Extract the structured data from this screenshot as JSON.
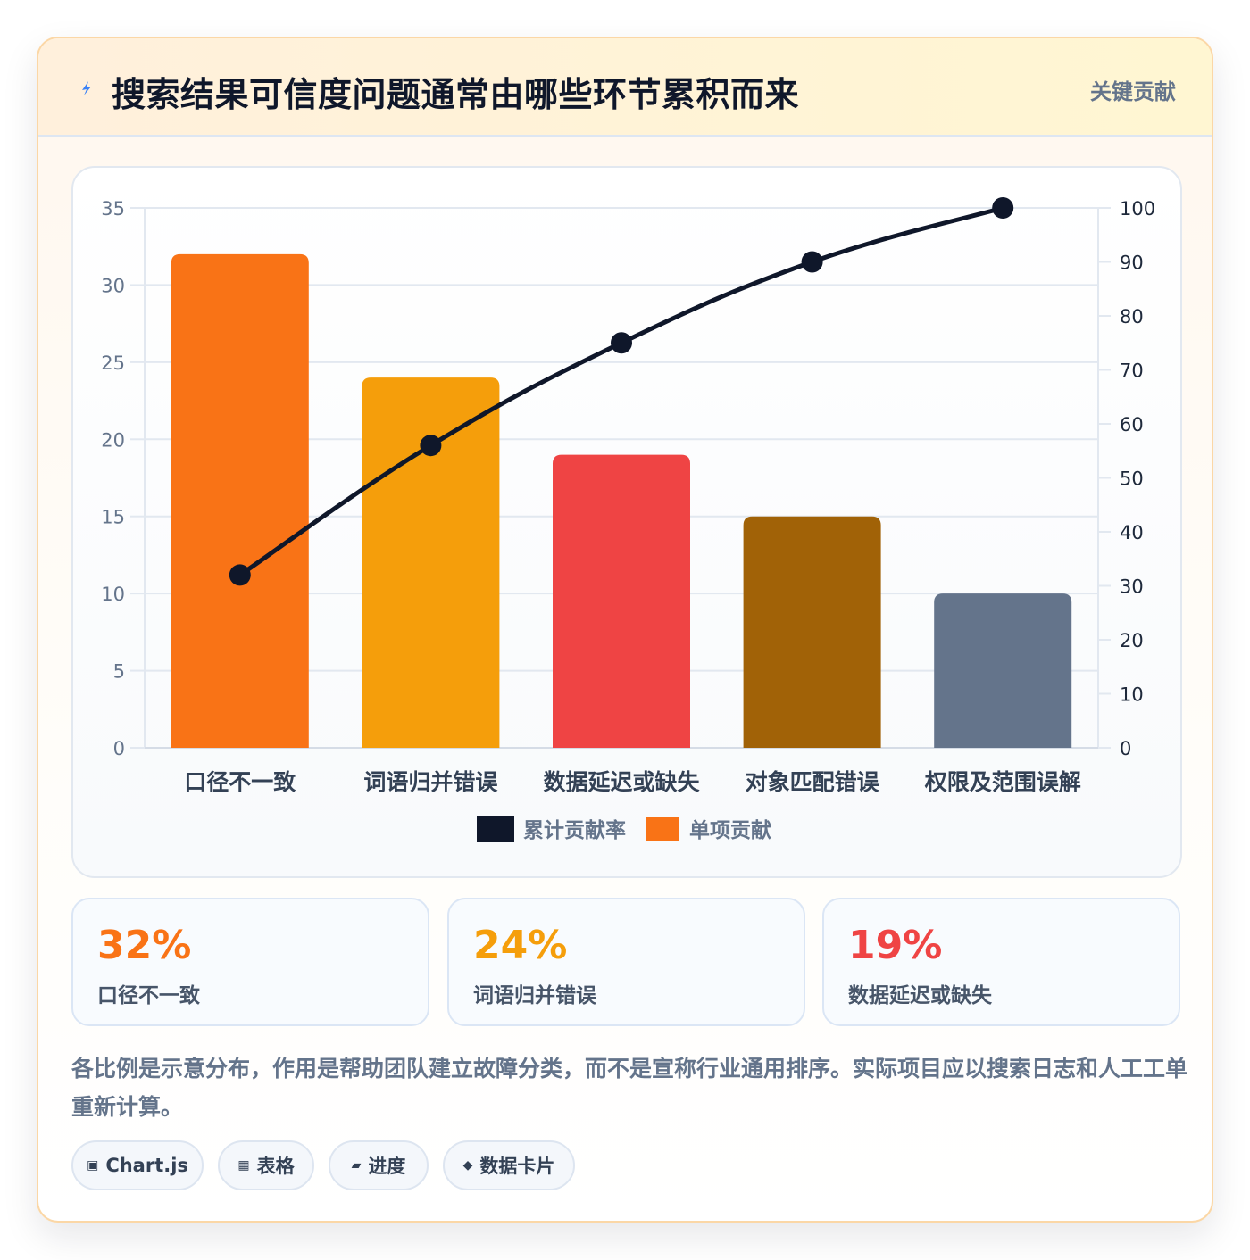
{
  "header": {
    "title": "搜索结果可信度问题通常由哪些环节累积而来",
    "tag": "关键贡献"
  },
  "chart_data": {
    "type": "bar",
    "categories": [
      "口径不一致",
      "词语归并错误",
      "数据延迟或缺失",
      "对象匹配错误",
      "权限及范围误解"
    ],
    "series": [
      {
        "name": "单项贡献",
        "type": "bar",
        "axis": "left",
        "values": [
          32,
          24,
          19,
          15,
          10
        ],
        "colors": [
          "#f97316",
          "#f59e0b",
          "#ef4444",
          "#a16207",
          "#64748b"
        ]
      },
      {
        "name": "累计贡献率",
        "type": "line",
        "axis": "right",
        "values": [
          32,
          56,
          75,
          90,
          100
        ],
        "color": "#0f172a"
      }
    ],
    "ylim_left": [
      0,
      35
    ],
    "yticks_left": [
      0,
      5,
      10,
      15,
      20,
      25,
      30,
      35
    ],
    "ylim_right": [
      0,
      100
    ],
    "yticks_right": [
      0,
      10,
      20,
      30,
      40,
      50,
      60,
      70,
      80,
      90,
      100
    ],
    "legend_position": "bottom",
    "grid": true
  },
  "stats": [
    {
      "value": "32%",
      "label": "口径不一致",
      "color": "#f97316"
    },
    {
      "value": "24%",
      "label": "词语归并错误",
      "color": "#f59e0b"
    },
    {
      "value": "19%",
      "label": "数据延迟或缺失",
      "color": "#ef4444"
    }
  ],
  "note": "各比例是示意分布，作用是帮助团队建立故障分类，而不是宣称行业通用排序。实际项目应以搜索日志和人工工单重新计算。",
  "chips": [
    {
      "icon": "▣",
      "label": "Chart.js"
    },
    {
      "icon": "▦",
      "label": "表格"
    },
    {
      "icon": "▰",
      "label": "进度"
    },
    {
      "icon": "◆",
      "label": "数据卡片"
    }
  ]
}
